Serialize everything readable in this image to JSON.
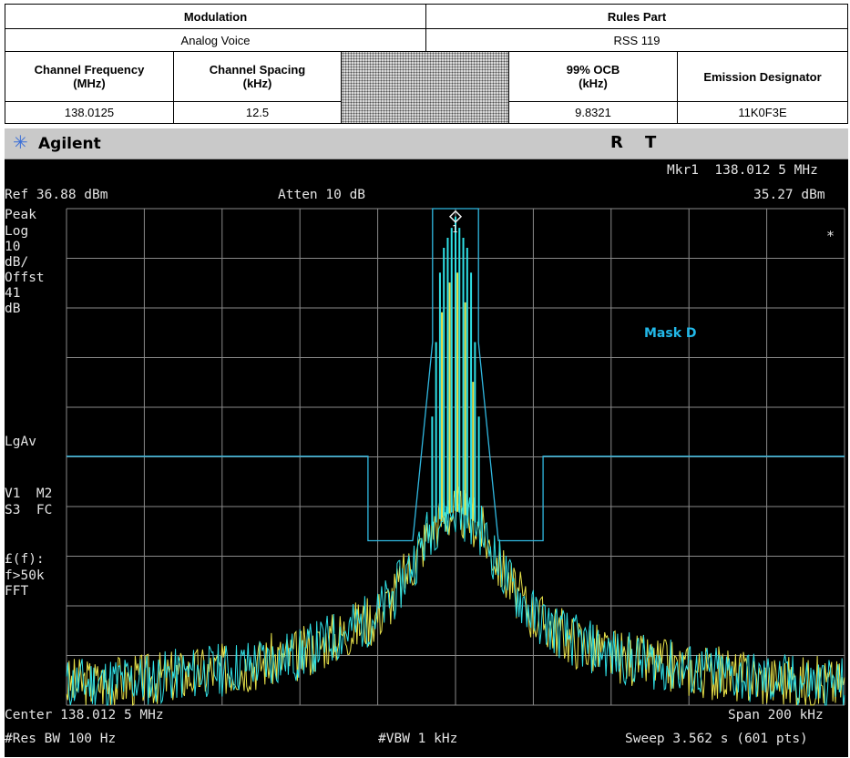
{
  "table": {
    "modulation_header": "Modulation",
    "rules_header": "Rules Part",
    "modulation_value": "Analog Voice",
    "rules_value": "RSS 119",
    "col_freq": "Channel Frequency\n(MHz)",
    "col_spacing": "Channel Spacing\n(kHz)",
    "col_ocb": "99% OCB\n(kHz)",
    "col_designator": "Emission Designator",
    "val_freq": "138.0125",
    "val_spacing": "12.5",
    "val_ocb": "9.8321",
    "val_designator": "11K0F3E"
  },
  "analyzer": {
    "brand": "Agilent",
    "logo_glyph": "✳",
    "status_r": "R",
    "status_t": "T",
    "marker_line": "Mkr1  138.012 5 MHz",
    "marker_level": "35.27 dBm",
    "ref_level": "Ref 36.88 dBm",
    "attenuation": "Atten 10 dB",
    "side_labels": {
      "det": "Peak",
      "scale": "Log",
      "div": "10",
      "div_unit": "dB/",
      "offset": "Offst",
      "offset_val": "41",
      "offset_unit": "dB",
      "avg": "LgAv",
      "trace1": "V1  M2",
      "trace2": "S3  FC",
      "func": "£(f):",
      "func2": "f>50k",
      "func3": "FFT"
    },
    "star": "*",
    "marker_number": "1",
    "center": "Center 138.012 5 MHz",
    "span": "Span 200 kHz",
    "res_bw": "#Res BW 100 Hz",
    "vbw": "#VBW 1 kHz",
    "sweep": "Sweep 3.562 s (601 pts)"
  },
  "chart_data": {
    "type": "line",
    "mask_label": "Mask D",
    "x_unit": "kHz offset from center",
    "xlim": [
      -100,
      100
    ],
    "ylim": [
      -63.12,
      36.88
    ],
    "y_ref_dbm": 36.88,
    "y_div_db": 10,
    "divisions_x": 10,
    "divisions_y": 10,
    "marker": {
      "x": 0,
      "y": 35.27
    },
    "colors": {
      "grid": "#8a8a8a",
      "trace_cyan": "#2fe0e6",
      "trace_yellow": "#e8e24a",
      "mask": "#30b8e0",
      "bg": "#000000"
    },
    "mask_points": [
      [
        -100,
        -13
      ],
      [
        -22.5,
        -13
      ],
      [
        -22.5,
        -30
      ],
      [
        -11,
        -30
      ],
      [
        -5.9,
        10
      ],
      [
        -5.9,
        36.88
      ],
      [
        5.9,
        36.88
      ],
      [
        5.9,
        10
      ],
      [
        11,
        -30
      ],
      [
        22.5,
        -30
      ],
      [
        22.5,
        -13
      ],
      [
        100,
        -13
      ]
    ],
    "envelope_points": [
      [
        -100,
        -59
      ],
      [
        -80,
        -58
      ],
      [
        -60,
        -56
      ],
      [
        -40,
        -53
      ],
      [
        -30,
        -49
      ],
      [
        -20,
        -45
      ],
      [
        -15,
        -40
      ],
      [
        -10,
        -33
      ],
      [
        -6,
        -27
      ],
      [
        -3,
        -25
      ],
      [
        0,
        -24
      ],
      [
        3,
        -25
      ],
      [
        6,
        -27
      ],
      [
        10,
        -33
      ],
      [
        15,
        -40
      ],
      [
        20,
        -45
      ],
      [
        30,
        -50
      ],
      [
        40,
        -53
      ],
      [
        60,
        -56
      ],
      [
        80,
        -58
      ],
      [
        100,
        -59
      ]
    ],
    "spectral_lines_cyan": [
      {
        "x": -4.0,
        "y": 24
      },
      {
        "x": -3.0,
        "y": 29
      },
      {
        "x": -2.0,
        "y": 31
      },
      {
        "x": -1.0,
        "y": 33
      },
      {
        "x": 0.0,
        "y": 35.27
      },
      {
        "x": 1.0,
        "y": 33
      },
      {
        "x": 2.0,
        "y": 31
      },
      {
        "x": 3.0,
        "y": 29
      },
      {
        "x": 4.0,
        "y": 24
      },
      {
        "x": -5.0,
        "y": 10
      },
      {
        "x": 5.0,
        "y": 10
      },
      {
        "x": -6.0,
        "y": -5
      },
      {
        "x": 6.0,
        "y": -5
      }
    ],
    "spectral_lines_yellow": [
      {
        "x": -3.5,
        "y": 16
      },
      {
        "x": -1.5,
        "y": 22
      },
      {
        "x": 0.5,
        "y": 24
      },
      {
        "x": 2.5,
        "y": 18
      },
      {
        "x": 4.5,
        "y": 2
      }
    ]
  }
}
